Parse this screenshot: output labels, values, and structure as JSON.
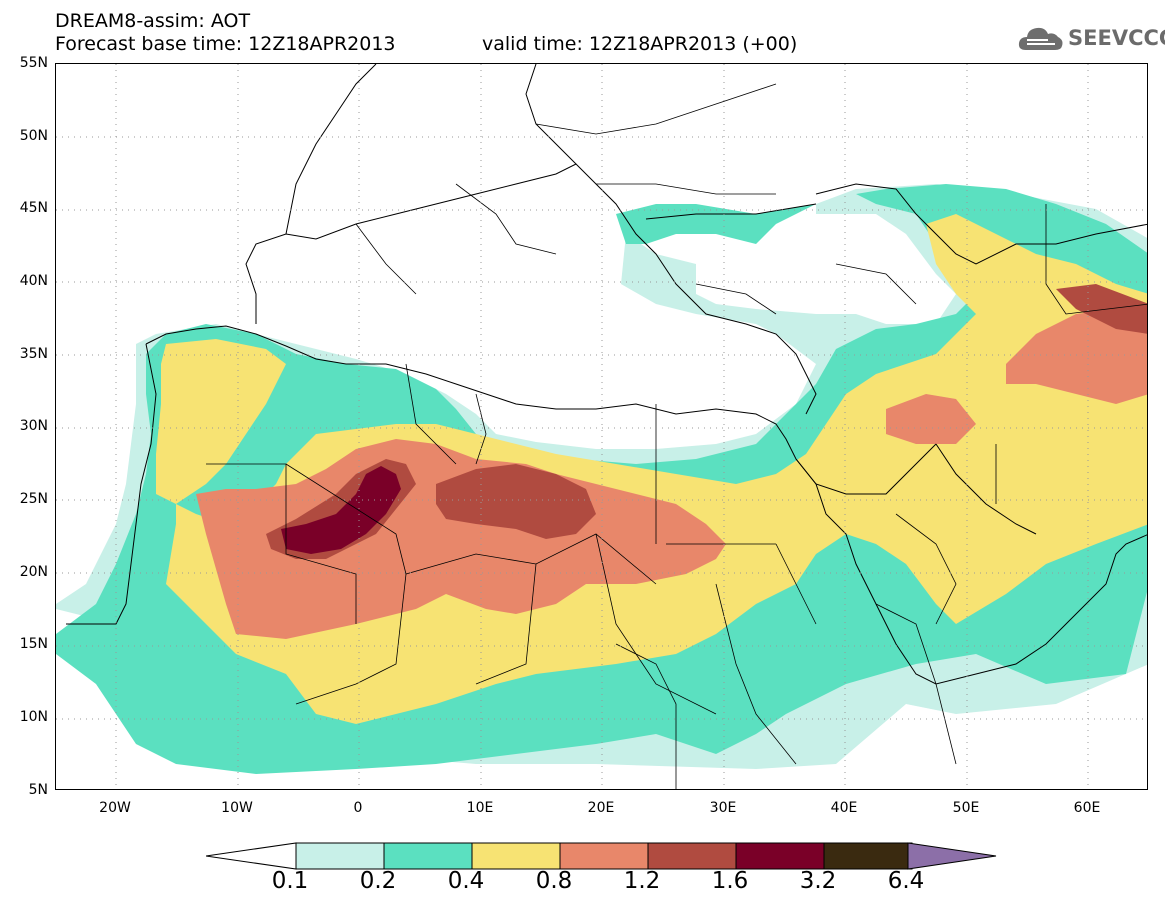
{
  "header": {
    "title": "DREAM8-assim: AOT",
    "base_time": "Forecast base time: 12Z18APR2013",
    "valid_time": "valid time: 12Z18APR2013 (+00)"
  },
  "logo": {
    "text": "SEEVCCC",
    "icon": "cloud-icon"
  },
  "map": {
    "lat_labels": [
      "55N",
      "50N",
      "45N",
      "40N",
      "35N",
      "30N",
      "25N",
      "20N",
      "15N",
      "10N",
      "5N"
    ],
    "lon_labels": [
      "20W",
      "10W",
      "0",
      "10E",
      "20E",
      "30E",
      "40E",
      "50E",
      "60E"
    ],
    "lon_range": [
      -25,
      65
    ],
    "lat_range": [
      5,
      55
    ],
    "grid": "dotted"
  },
  "legend": {
    "colors": [
      "#c8f0e8",
      "#5be0c0",
      "#f7e373",
      "#e8876a",
      "#b04b40",
      "#7a0028",
      "#3a2a10",
      "#8c6fa8"
    ],
    "labels": [
      "0.1",
      "0.2",
      "0.4",
      "0.8",
      "1.2",
      "1.6",
      "3.2",
      "6.4"
    ]
  }
}
